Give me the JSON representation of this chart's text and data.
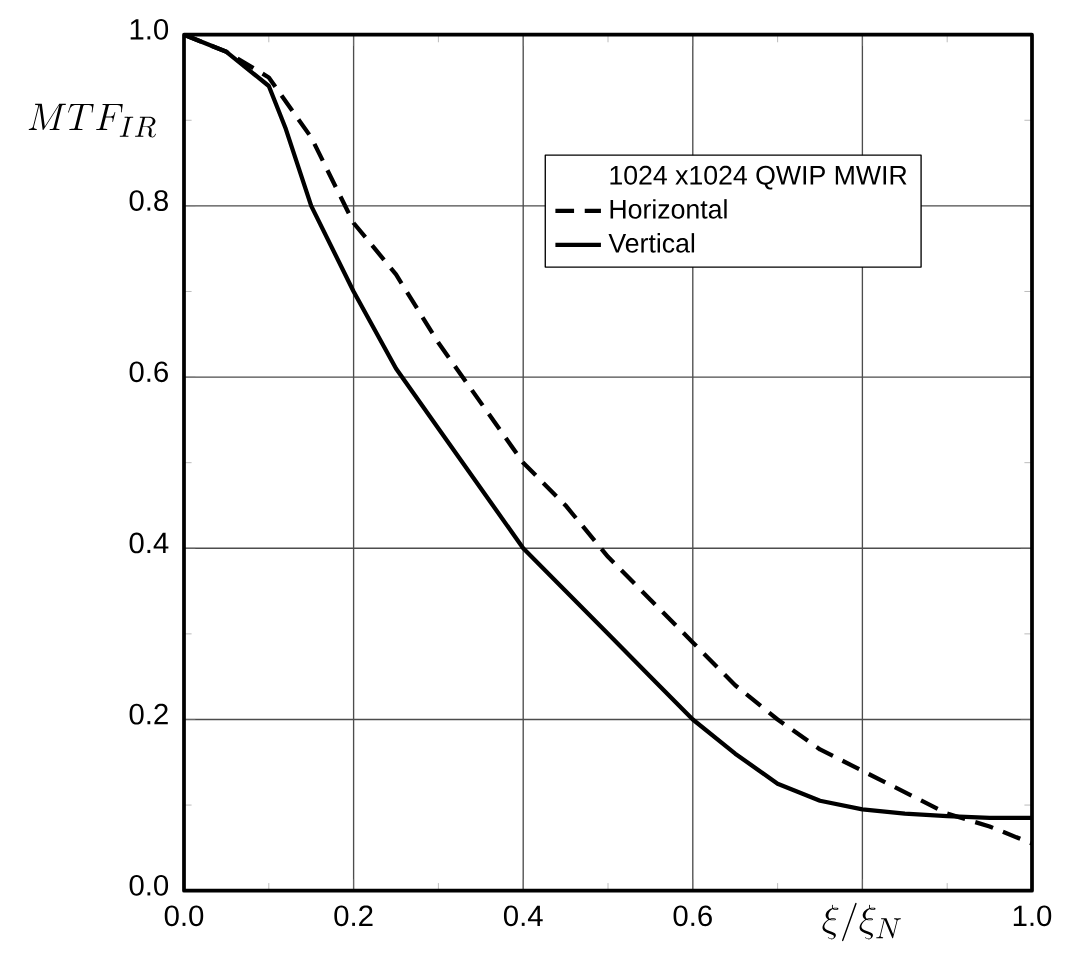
{
  "chart_data": {
    "type": "line",
    "xlabel": "\\xi/\\xi_N",
    "ylabel": "MTF_{IR}",
    "legend_title": "1024 x1024 QWIP MWIR",
    "xlim": [
      0,
      1
    ],
    "ylim": [
      0,
      1
    ],
    "xticks": [
      {
        "value": 0,
        "label": "0.0"
      },
      0.2,
      0.4,
      0.6,
      {
        "value": 0.8,
        "label": null
      },
      {
        "value": 1,
        "label": "1.0"
      }
    ],
    "yticks": [
      {
        "value": 0,
        "label": "0.0"
      },
      0.2,
      0.4,
      0.6,
      0.8,
      {
        "value": 1,
        "label": "1.0"
      }
    ],
    "grid": true,
    "legend": "top right",
    "marker": "none",
    "series": [
      {
        "name": "Horizontal",
        "color": "#000000",
        "line_style": "dashed",
        "x": [
          0,
          0.05,
          0.1,
          0.15,
          0.2,
          0.25,
          0.3,
          0.35,
          0.4,
          0.45,
          0.5,
          0.55,
          0.6,
          0.65,
          0.7,
          0.75,
          0.8,
          0.85,
          0.9,
          0.95,
          1.0
        ],
        "values": [
          1.0,
          0.98,
          0.95,
          0.88,
          0.78,
          0.72,
          0.64,
          0.57,
          0.5,
          0.45,
          0.39,
          0.34,
          0.29,
          0.24,
          0.2,
          0.165,
          0.14,
          0.115,
          0.09,
          0.075,
          0.055
        ]
      },
      {
        "name": "Vertical",
        "color": "#000000",
        "line_style": "solid",
        "x": [
          0,
          0.05,
          0.1,
          0.12,
          0.15,
          0.2,
          0.25,
          0.3,
          0.35,
          0.4,
          0.45,
          0.5,
          0.55,
          0.6,
          0.65,
          0.7,
          0.75,
          0.8,
          0.85,
          0.9,
          0.95,
          1.0
        ],
        "values": [
          1.0,
          0.98,
          0.94,
          0.89,
          0.8,
          0.7,
          0.61,
          0.54,
          0.47,
          0.4,
          0.35,
          0.3,
          0.25,
          0.2,
          0.16,
          0.125,
          0.105,
          0.095,
          0.09,
          0.087,
          0.085,
          0.085
        ]
      }
    ]
  }
}
